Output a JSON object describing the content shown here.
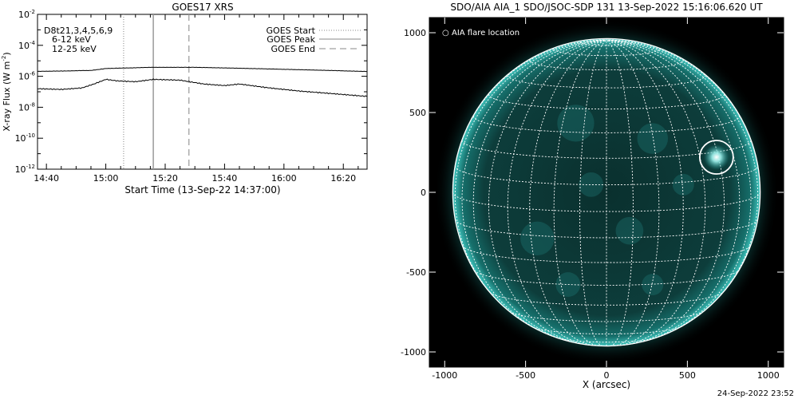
{
  "chart_data": [
    {
      "type": "line",
      "title": "GOES17 XRS",
      "xlabel": "Start Time (13-Sep-22 14:37:00)",
      "ylabel_prefix": "X-ray Flux (W m",
      "ylabel_exp": "-2",
      "ylabel_suffix": ")",
      "yscale": "log",
      "ylim_exp": [
        -12,
        -2
      ],
      "xlim": [
        "14:37",
        "16:28"
      ],
      "x_ticks": [
        "14:40",
        "15:00",
        "15:20",
        "15:40",
        "16:00",
        "16:20"
      ],
      "y_ticks": [
        {
          "base": "10",
          "exp": "-12"
        },
        {
          "base": "10",
          "exp": "-10"
        },
        {
          "base": "10",
          "exp": "-8"
        },
        {
          "base": "10",
          "exp": "-6"
        },
        {
          "base": "10",
          "exp": "-4"
        },
        {
          "base": "10",
          "exp": "-2"
        }
      ],
      "header_label": "D8t21,3,4,5,6,9",
      "legend_left": [
        {
          "name": "6-12 keV",
          "color": "#d020d0"
        },
        {
          "name": "12-25 keV",
          "color": "#20d020"
        }
      ],
      "legend_right": [
        {
          "name": "GOES Start",
          "style": "dotted"
        },
        {
          "name": "GOES Peak",
          "style": "solid"
        },
        {
          "name": "GOES End",
          "style": "dashed"
        }
      ],
      "event_lines": {
        "start": "15:06",
        "peak": "15:16",
        "end": "15:28"
      },
      "series": [
        {
          "band": "long",
          "color": "#000000",
          "x": [
            "14:37",
            "14:45",
            "14:55",
            "14:58",
            "15:00",
            "15:05",
            "15:10",
            "15:15",
            "15:30",
            "15:45",
            "16:00",
            "16:15",
            "16:28"
          ],
          "log10_y": [
            -5.68,
            -5.66,
            -5.62,
            -5.55,
            -5.5,
            -5.47,
            -5.45,
            -5.42,
            -5.42,
            -5.48,
            -5.55,
            -5.62,
            -5.69
          ]
        },
        {
          "band": "short",
          "color": "#000000",
          "x": [
            "14:37",
            "14:45",
            "14:52",
            "14:56",
            "15:00",
            "15:04",
            "15:10",
            "15:16",
            "15:25",
            "15:33",
            "15:40",
            "15:45",
            "15:55",
            "16:05",
            "16:15",
            "16:28"
          ],
          "log10_y": [
            -6.8,
            -6.85,
            -6.75,
            -6.5,
            -6.2,
            -6.3,
            -6.35,
            -6.2,
            -6.25,
            -6.5,
            -6.6,
            -6.5,
            -6.75,
            -6.95,
            -7.1,
            -7.3
          ]
        }
      ]
    },
    {
      "type": "image",
      "title": "SDO/AIA AIA_1 SDO/JSOC-SDP 131 13-Sep-2022 15:16:06.620 UT",
      "xlabel": "X (arcsec)",
      "x_ticks": [
        "-1000",
        "-500",
        "0",
        "500",
        "1000"
      ],
      "y_ticks": [
        "-1000",
        "-500",
        "0",
        "500",
        "1000"
      ],
      "xlim": [
        -1000,
        1000
      ],
      "ylim": [
        -1000,
        1000
      ],
      "annotation": "AIA flare location",
      "flare_location": {
        "x_arcsec": 680,
        "y_arcsec": 220
      },
      "solar_radius_arcsec": 950,
      "colors": {
        "disk": "#0c3a38",
        "limb_glow": "#1fa6a0",
        "grid": "#ffffff",
        "background": "#000000"
      },
      "timestamp": "24-Sep-2022 23:52"
    }
  ]
}
